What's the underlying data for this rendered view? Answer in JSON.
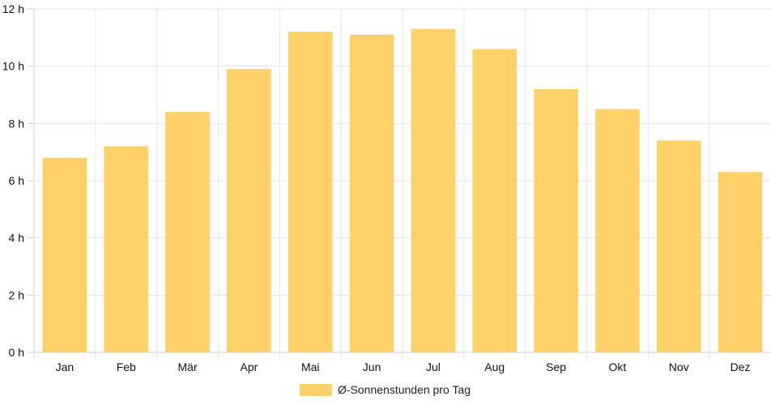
{
  "chart_data": {
    "type": "bar",
    "categories": [
      "Jan",
      "Feb",
      "Mär",
      "Apr",
      "Mai",
      "Jun",
      "Jul",
      "Aug",
      "Sep",
      "Okt",
      "Nov",
      "Dez"
    ],
    "series": [
      {
        "name": "Ø-Sonnenstunden pro Tag",
        "values": [
          6.8,
          7.2,
          8.4,
          9.9,
          11.2,
          11.1,
          11.3,
          10.6,
          9.2,
          8.5,
          7.4,
          6.3
        ],
        "color": "#fdd167"
      }
    ],
    "y_ticks": [
      "0 h",
      "2 h",
      "4 h",
      "6 h",
      "8 h",
      "10 h",
      "12 h"
    ],
    "ylim": [
      0,
      12
    ],
    "grid": true,
    "legend_position": "bottom",
    "gridline_color": "#e6e6e6",
    "axis_color": "#d0d0d0"
  }
}
